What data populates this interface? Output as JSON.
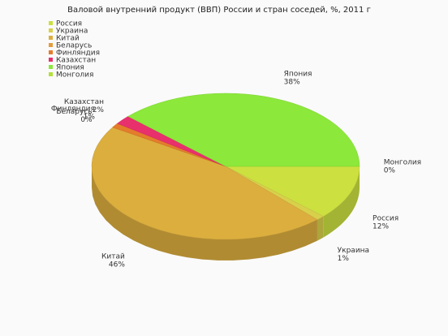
{
  "chart_data": {
    "type": "pie",
    "title": "Валовой внутренний продукт (ВВП) России и стран соседей, %, 2011 г",
    "categories": [
      "Монголия",
      "Россия",
      "Украина",
      "Китай",
      "Беларусь",
      "Финляндия",
      "Казахстан",
      "Япония"
    ],
    "values": [
      0,
      12,
      1,
      46,
      0,
      1,
      2,
      38
    ],
    "value_labels": [
      "0%",
      "12%",
      "1%",
      "46%",
      "0%",
      "1%",
      "2%",
      "38%"
    ],
    "colors": [
      "#b4e03c",
      "#cce040",
      "#d8d04a",
      "#dcae3e",
      "#e49c3c",
      "#e47c2c",
      "#e8306c",
      "#8ce83a"
    ]
  }
}
